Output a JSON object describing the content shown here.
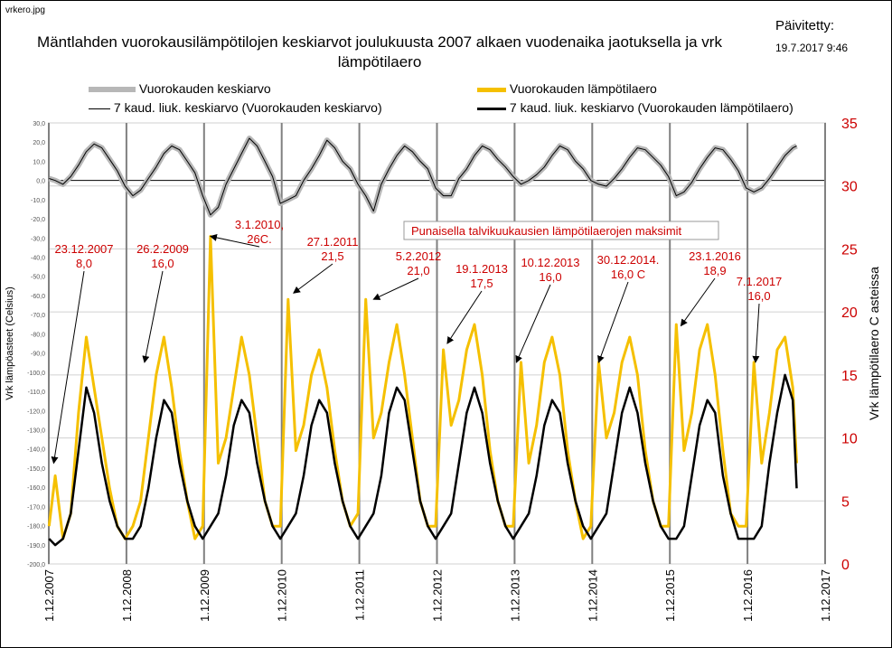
{
  "page": {
    "filename": "vrkero.jpg",
    "updated_label": "Päivitetty:",
    "updated_date": "19.7.2017 9:46"
  },
  "colors": {
    "daily_mean": "#b7b7b7",
    "daily_diff": "#f5c000",
    "moving_mean": "#000000",
    "moving_diff": "#000000",
    "annotation": "#cc0000",
    "axis_right": "#cc0000"
  },
  "chart_data": {
    "type": "line",
    "title": "Mäntlahden  vuorokausilämpötilojen keskiarvot joulukuusta 2007 alkaen vuodenaika jaotuksella ja vrk lämpötilaero",
    "ylabel": "Vrk lämpöasteet (Celsius)",
    "ylabel_right": "Vrk lämpötilaero  C asteissa",
    "ylim": [
      -200,
      30
    ],
    "ylim_right": [
      0,
      35
    ],
    "yticks": [
      "30,0",
      "20,0",
      "10,0",
      "0,0",
      "-10,0",
      "-20,0",
      "-30,0",
      "-40,0",
      "-50,0",
      "-60,0",
      "-70,0",
      "-80,0",
      "-90,0",
      "-100,0",
      "-110,0",
      "-120,0",
      "-130,0",
      "-140,0",
      "-150,0",
      "-160,0",
      "-170,0",
      "-180,0",
      "-190,0",
      "-200,0"
    ],
    "yticks_right": [
      "35",
      "30",
      "25",
      "20",
      "15",
      "10",
      "5",
      "0"
    ],
    "xticks": [
      "1.12.2007",
      "1.12.2008",
      "1.12.2009",
      "1.12.2010",
      "1.12.2011",
      "1.12.2012",
      "1.12.2013",
      "1.12.2014",
      "1.12.2015",
      "1.12.2016",
      "1.12.2017"
    ],
    "legend": [
      {
        "name": "Vuorokauden keskiarvo",
        "style": "thick-gray"
      },
      {
        "name": "Vuorokauden lämpötilaero",
        "style": "thick-yellow"
      },
      {
        "name": "7 kaud. liuk. keskiarvo (Vuorokauden keskiarvo)",
        "style": "thin-black"
      },
      {
        "name": "7 kaud. liuk. keskiarvo (Vuorokauden lämpötilaero)",
        "style": "thick-black"
      }
    ],
    "series": [
      {
        "name": "Vuorokauden keskiarvo",
        "axis": "left",
        "x": [
          2007.92,
          2008.0,
          2008.1,
          2008.2,
          2008.3,
          2008.4,
          2008.5,
          2008.6,
          2008.7,
          2008.8,
          2008.9,
          2009.0,
          2009.1,
          2009.2,
          2009.3,
          2009.4,
          2009.5,
          2009.6,
          2009.7,
          2009.8,
          2009.9,
          2010.0,
          2010.1,
          2010.2,
          2010.3,
          2010.4,
          2010.5,
          2010.6,
          2010.7,
          2010.8,
          2010.9,
          2011.0,
          2011.1,
          2011.2,
          2011.3,
          2011.4,
          2011.5,
          2011.6,
          2011.7,
          2011.8,
          2011.9,
          2012.0,
          2012.1,
          2012.2,
          2012.3,
          2012.4,
          2012.5,
          2012.6,
          2012.7,
          2012.8,
          2012.9,
          2013.0,
          2013.1,
          2013.2,
          2013.3,
          2013.4,
          2013.5,
          2013.6,
          2013.7,
          2013.8,
          2013.9,
          2014.0,
          2014.1,
          2014.2,
          2014.3,
          2014.4,
          2014.5,
          2014.6,
          2014.7,
          2014.8,
          2014.9,
          2015.0,
          2015.1,
          2015.2,
          2015.3,
          2015.4,
          2015.5,
          2015.6,
          2015.7,
          2015.8,
          2015.9,
          2016.0,
          2016.1,
          2016.2,
          2016.3,
          2016.4,
          2016.5,
          2016.6,
          2016.7,
          2016.8,
          2016.9,
          2017.0,
          2017.1,
          2017.2,
          2017.3,
          2017.4,
          2017.5,
          2017.55
        ],
        "values": [
          1,
          0,
          -2,
          2,
          8,
          15,
          19,
          17,
          11,
          5,
          -3,
          -8,
          -5,
          1,
          7,
          14,
          18,
          16,
          10,
          4,
          -8,
          -18,
          -14,
          -2,
          6,
          14,
          22,
          18,
          10,
          2,
          -12,
          -10,
          -8,
          0,
          6,
          13,
          21,
          17,
          10,
          6,
          -2,
          -8,
          -16,
          -2,
          6,
          13,
          18,
          15,
          10,
          6,
          -4,
          -8,
          -8,
          1,
          6,
          13,
          18,
          16,
          11,
          7,
          2,
          -2,
          0,
          3,
          7,
          13,
          18,
          16,
          10,
          6,
          0,
          -2,
          -3,
          1,
          6,
          12,
          17,
          16,
          12,
          8,
          2,
          -8,
          -6,
          -1,
          6,
          12,
          17,
          16,
          11,
          5,
          -4,
          -6,
          -4,
          1,
          7,
          13,
          17,
          18
        ]
      },
      {
        "name": "Vuorokauden lämpötilaero",
        "axis": "right",
        "x": [
          2007.92,
          2008.0,
          2008.1,
          2008.2,
          2008.3,
          2008.4,
          2008.5,
          2008.6,
          2008.7,
          2008.8,
          2008.9,
          2009.0,
          2009.1,
          2009.2,
          2009.3,
          2009.4,
          2009.5,
          2009.6,
          2009.7,
          2009.8,
          2009.9,
          2010.0,
          2010.1,
          2010.2,
          2010.3,
          2010.4,
          2010.5,
          2010.6,
          2010.7,
          2010.8,
          2010.9,
          2011.0,
          2011.1,
          2011.2,
          2011.3,
          2011.4,
          2011.5,
          2011.6,
          2011.7,
          2011.8,
          2011.9,
          2012.0,
          2012.1,
          2012.2,
          2012.3,
          2012.4,
          2012.5,
          2012.6,
          2012.7,
          2012.8,
          2012.9,
          2013.0,
          2013.1,
          2013.2,
          2013.3,
          2013.4,
          2013.5,
          2013.6,
          2013.7,
          2013.8,
          2013.9,
          2014.0,
          2014.1,
          2014.2,
          2014.3,
          2014.4,
          2014.5,
          2014.6,
          2014.7,
          2014.8,
          2014.9,
          2015.0,
          2015.1,
          2015.2,
          2015.3,
          2015.4,
          2015.5,
          2015.6,
          2015.7,
          2015.8,
          2015.9,
          2016.0,
          2016.1,
          2016.2,
          2016.3,
          2016.4,
          2016.5,
          2016.6,
          2016.7,
          2016.8,
          2016.9,
          2017.0,
          2017.1,
          2017.2,
          2017.3,
          2017.4,
          2017.5,
          2017.55
        ],
        "values": [
          3,
          7,
          2,
          4,
          12,
          18,
          14,
          10,
          6,
          3,
          2,
          3,
          5,
          10,
          15,
          18,
          14,
          9,
          5,
          2,
          3,
          26,
          8,
          10,
          14,
          18,
          15,
          10,
          5,
          3,
          3,
          21,
          9,
          11,
          15,
          17,
          14,
          9,
          5,
          3,
          4,
          21,
          10,
          12,
          16,
          19,
          15,
          10,
          5,
          3,
          3,
          17,
          11,
          13,
          17,
          19,
          15,
          9,
          5,
          3,
          3,
          16,
          8,
          11,
          16,
          18,
          15,
          9,
          5,
          2,
          3,
          16,
          10,
          12,
          16,
          18,
          15,
          9,
          5,
          3,
          3,
          19,
          9,
          12,
          17,
          19,
          15,
          9,
          4,
          3,
          3,
          16,
          8,
          12,
          17,
          18,
          14,
          8
        ]
      },
      {
        "name": "7 kaud. liuk. keskiarvo (Vuorokauden keskiarvo)",
        "axis": "left",
        "x": [
          2007.92,
          2008.0,
          2008.1,
          2008.2,
          2008.3,
          2008.4,
          2008.5,
          2008.6,
          2008.7,
          2008.8,
          2008.9,
          2009.0,
          2009.1,
          2009.2,
          2009.3,
          2009.4,
          2009.5,
          2009.6,
          2009.7,
          2009.8,
          2009.9,
          2010.0,
          2010.1,
          2010.2,
          2010.3,
          2010.4,
          2010.5,
          2010.6,
          2010.7,
          2010.8,
          2010.9,
          2011.0,
          2011.1,
          2011.2,
          2011.3,
          2011.4,
          2011.5,
          2011.6,
          2011.7,
          2011.8,
          2011.9,
          2012.0,
          2012.1,
          2012.2,
          2012.3,
          2012.4,
          2012.5,
          2012.6,
          2012.7,
          2012.8,
          2012.9,
          2013.0,
          2013.1,
          2013.2,
          2013.3,
          2013.4,
          2013.5,
          2013.6,
          2013.7,
          2013.8,
          2013.9,
          2014.0,
          2014.1,
          2014.2,
          2014.3,
          2014.4,
          2014.5,
          2014.6,
          2014.7,
          2014.8,
          2014.9,
          2015.0,
          2015.1,
          2015.2,
          2015.3,
          2015.4,
          2015.5,
          2015.6,
          2015.7,
          2015.8,
          2015.9,
          2016.0,
          2016.1,
          2016.2,
          2016.3,
          2016.4,
          2016.5,
          2016.6,
          2016.7,
          2016.8,
          2016.9,
          2017.0,
          2017.1,
          2017.2,
          2017.3,
          2017.4,
          2017.5,
          2017.55
        ],
        "values": [
          1,
          0,
          -2,
          2,
          8,
          15,
          19,
          17,
          11,
          5,
          -3,
          -8,
          -5,
          1,
          7,
          14,
          18,
          16,
          10,
          4,
          -8,
          -18,
          -14,
          -2,
          6,
          14,
          22,
          18,
          10,
          2,
          -12,
          -10,
          -8,
          0,
          6,
          13,
          21,
          17,
          10,
          6,
          -2,
          -8,
          -16,
          -2,
          6,
          13,
          18,
          15,
          10,
          6,
          -4,
          -8,
          -8,
          1,
          6,
          13,
          18,
          16,
          11,
          7,
          2,
          -2,
          0,
          3,
          7,
          13,
          18,
          16,
          10,
          6,
          0,
          -2,
          -3,
          1,
          6,
          12,
          17,
          16,
          12,
          8,
          2,
          -8,
          -6,
          -1,
          6,
          12,
          17,
          16,
          11,
          5,
          -4,
          -6,
          -4,
          1,
          7,
          13,
          17,
          18
        ]
      },
      {
        "name": "7 kaud. liuk. keskiarvo (Vuorokauden lämpötilaero)",
        "axis": "right",
        "x": [
          2007.92,
          2008.0,
          2008.1,
          2008.2,
          2008.3,
          2008.4,
          2008.5,
          2008.6,
          2008.7,
          2008.8,
          2008.9,
          2009.0,
          2009.1,
          2009.2,
          2009.3,
          2009.4,
          2009.5,
          2009.6,
          2009.7,
          2009.8,
          2009.9,
          2010.0,
          2010.1,
          2010.2,
          2010.3,
          2010.4,
          2010.5,
          2010.6,
          2010.7,
          2010.8,
          2010.9,
          2011.0,
          2011.1,
          2011.2,
          2011.3,
          2011.4,
          2011.5,
          2011.6,
          2011.7,
          2011.8,
          2011.9,
          2012.0,
          2012.1,
          2012.2,
          2012.3,
          2012.4,
          2012.5,
          2012.6,
          2012.7,
          2012.8,
          2012.9,
          2013.0,
          2013.1,
          2013.2,
          2013.3,
          2013.4,
          2013.5,
          2013.6,
          2013.7,
          2013.8,
          2013.9,
          2014.0,
          2014.1,
          2014.2,
          2014.3,
          2014.4,
          2014.5,
          2014.6,
          2014.7,
          2014.8,
          2014.9,
          2015.0,
          2015.1,
          2015.2,
          2015.3,
          2015.4,
          2015.5,
          2015.6,
          2015.7,
          2015.8,
          2015.9,
          2016.0,
          2016.1,
          2016.2,
          2016.3,
          2016.4,
          2016.5,
          2016.6,
          2016.7,
          2016.8,
          2016.9,
          2017.0,
          2017.1,
          2017.2,
          2017.3,
          2017.4,
          2017.5,
          2017.55
        ],
        "values": [
          2,
          1.5,
          2,
          4,
          9,
          14,
          12,
          8,
          5,
          3,
          2,
          2,
          3,
          6,
          10,
          13,
          12,
          8,
          5,
          3,
          2,
          3,
          4,
          7,
          11,
          13,
          12,
          8,
          5,
          3,
          2,
          3,
          4,
          7,
          11,
          13,
          12,
          8,
          5,
          3,
          2,
          3,
          4,
          7,
          12,
          14,
          13,
          9,
          5,
          3,
          2,
          3,
          4,
          8,
          12,
          14,
          12,
          8,
          5,
          3,
          2,
          3,
          4,
          7,
          11,
          13,
          12,
          8,
          5,
          3,
          2,
          3,
          4,
          8,
          12,
          14,
          12,
          8,
          5,
          3,
          2,
          2,
          3,
          7,
          11,
          13,
          12,
          7,
          4,
          2,
          2,
          2,
          3,
          8,
          12,
          15,
          13,
          6
        ]
      }
    ],
    "annotation_box": "Punaisella talvikuukausien lämpötilaerojen maksimit",
    "annotations": [
      {
        "line1": "23.12.2007",
        "line2": "8,0",
        "x": 2007.98,
        "value": 8.0
      },
      {
        "line1": "26.2.2009",
        "line2": "16,0",
        "x": 2009.15,
        "value": 16.0
      },
      {
        "line1": "3.1.2010,",
        "line2": "26C.",
        "x": 2010.0,
        "value": 26.0
      },
      {
        "line1": "27.1.2011",
        "line2": "21,5",
        "x": 2011.07,
        "value": 21.5
      },
      {
        "line1": "5.2.2012",
        "line2": "21,0",
        "x": 2012.1,
        "value": 21.0
      },
      {
        "line1": "19.1.2013",
        "line2": "17,5",
        "x": 2013.05,
        "value": 17.5
      },
      {
        "line1": "10.12.2013",
        "line2": "16,0",
        "x": 2013.94,
        "value": 16.0
      },
      {
        "line1": "30.12.2014.",
        "line2": "16,0 C",
        "x": 2015.0,
        "value": 16.0
      },
      {
        "line1": "23.1.2016",
        "line2": "18,9",
        "x": 2016.06,
        "value": 18.9
      },
      {
        "line1": "7.1.2017",
        "line2": "16,0",
        "x": 2017.02,
        "value": 16.0
      }
    ]
  }
}
